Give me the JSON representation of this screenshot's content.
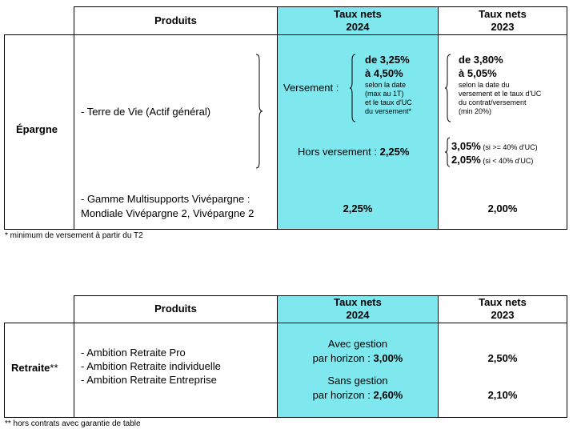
{
  "table1": {
    "header": {
      "produits": "Produits",
      "taux2024_l1": "Taux nets",
      "taux2024_l2": "2024",
      "taux2023_l1": "Taux nets",
      "taux2023_l2": "2023"
    },
    "category": "Épargne",
    "product1": "- Terre de Vie (Actif général)",
    "product2_l1": "- Gamme Multisupports Vivépargne :",
    "product2_l2": "Mondiale Vivépargne 2, Vivépargne 2",
    "versement_label": "Versement :",
    "v2024_range_l1": "de 3,25%",
    "v2024_range_l2": "à 4,50%",
    "v2024_note": [
      "selon la date",
      "(max au 1T)",
      "et le taux d'UC",
      "du versement*"
    ],
    "v2023_range_l1": "de 3,80%",
    "v2023_range_l2": "à 5,05%",
    "v2023_note": [
      "selon la date du",
      "versement et le taux d'UC",
      "du contrat/versement",
      "(min 20%)"
    ],
    "hors_versement_label": "Hors versement : ",
    "hors_versement_2024": "2,25%",
    "hors_2023_a_value": "3,05%",
    "hors_2023_a_cond": " (si >= 40% d'UC)",
    "hors_2023_b_value": "2,05%",
    "hors_2023_b_cond": " (si < 40% d'UC)",
    "multi_2024": "2,25%",
    "multi_2023": "2,00%"
  },
  "footnote1": "* minimum de versement à partir du T2",
  "table2": {
    "header": {
      "produits": "Produits",
      "taux2024_l1": "Taux nets",
      "taux2024_l2": "2024",
      "taux2023_l1": "Taux nets",
      "taux2023_l2": "2023"
    },
    "category": "Retraite",
    "category_mark": "**",
    "products": [
      "- Ambition Retraite Pro",
      "- Ambition Retraite individuelle",
      "- Ambition Retraite Entreprise"
    ],
    "avec_l1": "Avec gestion",
    "avec_l2": "par horizon : ",
    "avec_value": "3,00%",
    "sans_l1": "Sans gestion",
    "sans_l2": "par horizon : ",
    "sans_value": "2,60%",
    "val2023_a": "2,50%",
    "val2023_b": "2,10%"
  },
  "footnote2": "** hors contrats avec garantie de table",
  "colors": {
    "highlight": "#7fe8ef"
  }
}
